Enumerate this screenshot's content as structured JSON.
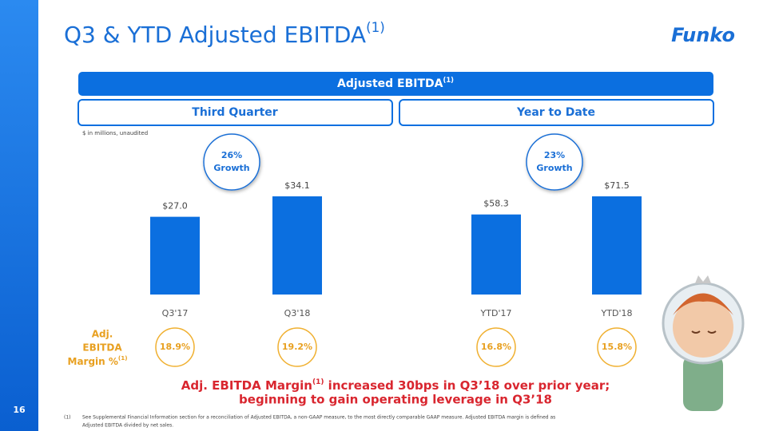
{
  "title": "Q3 & YTD Adjusted EBITDA",
  "title_sup": "(1)",
  "logo": "Funko",
  "banner": "Adjusted EBITDA",
  "banner_sup": "(1)",
  "units_note": "$ in millions, unaudited",
  "margin_label": [
    "Adj.",
    "EBITDA",
    "Margin %"
  ],
  "margin_label_sup": "(1)",
  "chart_data": [
    {
      "type": "bar",
      "title": "Third Quarter",
      "categories": [
        "Q3'17",
        "Q3'18"
      ],
      "values": [
        27.0,
        34.1
      ],
      "value_labels": [
        "$27.0",
        "$34.1"
      ],
      "color": "#0b6fe0",
      "growth": [
        "26%",
        "Growth"
      ],
      "margins": [
        "18.9%",
        "19.2%"
      ]
    },
    {
      "type": "bar",
      "title": "Year to Date",
      "categories": [
        "YTD'17",
        "YTD'18"
      ],
      "values": [
        58.3,
        71.5
      ],
      "value_labels": [
        "$58.3",
        "$71.5"
      ],
      "color": "#0b6fe0",
      "growth": [
        "23%",
        "Growth"
      ],
      "margins": [
        "16.8%",
        "15.8%"
      ]
    }
  ],
  "callout": {
    "line1_a": "Adj. EBITDA Margin",
    "line1_sup": "(1)",
    "line1_b": " increased 30bps in Q3’18 over prior year;",
    "line2": "beginning to gain operating leverage in Q3’18"
  },
  "footnote": {
    "marker": "(1)",
    "line1": "See Supplemental Financial Information section for a reconciliation of Adjusted EBITDA, a non-GAAP measure, to the most directly comparable GAAP measure. Adjusted EBITDA margin is defined as",
    "line2": "Adjusted EBITDA divided by net sales."
  },
  "page_number": "16"
}
